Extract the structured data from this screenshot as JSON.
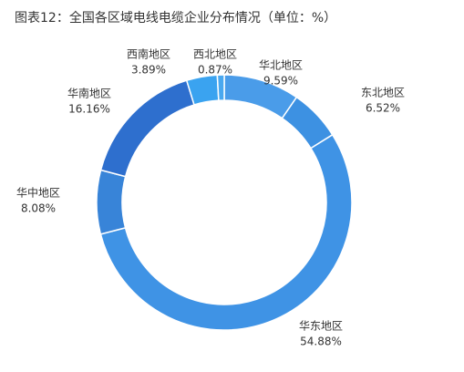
{
  "chart_data": {
    "type": "pie",
    "title": "图表12：全国各区域电线电缆企业分布情况（单位：%）",
    "categories": [
      "华北地区",
      "东北地区",
      "华东地区",
      "华中地区",
      "华南地区",
      "西南地区",
      "西北地区"
    ],
    "values": [
      9.59,
      6.52,
      54.88,
      8.08,
      16.16,
      3.89,
      0.87
    ],
    "value_labels": [
      "9.59%",
      "6.52%",
      "54.88%",
      "8.08%",
      "16.16%",
      "3.89%",
      "0.87%"
    ],
    "colors": [
      "#4a9ce9",
      "#3d91e2",
      "#3f93e5",
      "#3884d8",
      "#2e6fce",
      "#3aa3f0",
      "#4aa8ef"
    ]
  }
}
